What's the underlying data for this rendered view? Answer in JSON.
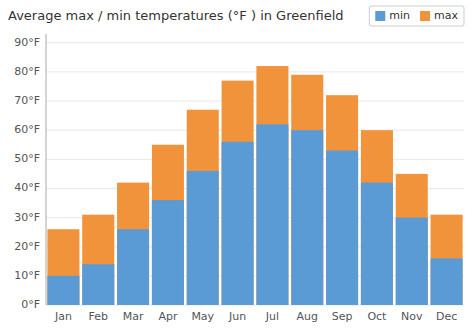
{
  "chart_data": {
    "type": "bar",
    "title": "Average max / min temperatures (°F ) in Greenfield",
    "categories": [
      "Jan",
      "Feb",
      "Mar",
      "Apr",
      "May",
      "Jun",
      "Jul",
      "Aug",
      "Sep",
      "Oct",
      "Nov",
      "Dec"
    ],
    "series": [
      {
        "name": "min",
        "color": "#5b9bd5",
        "values": [
          10,
          14,
          26,
          36,
          46,
          56,
          62,
          60,
          53,
          42,
          30,
          16
        ]
      },
      {
        "name": "max",
        "color": "#f0933a",
        "values": [
          26,
          31,
          42,
          55,
          67,
          77,
          82,
          79,
          72,
          60,
          45,
          31
        ]
      }
    ],
    "stacked": false,
    "ylim": [
      0,
      93
    ],
    "yticks": [
      {
        "value": 0,
        "label": "0°F"
      },
      {
        "value": 10,
        "label": "10°F"
      },
      {
        "value": 20,
        "label": "20°F"
      },
      {
        "value": 30,
        "label": "30°F"
      },
      {
        "value": 40,
        "label": "40°F"
      },
      {
        "value": 50,
        "label": "50°F"
      },
      {
        "value": 60,
        "label": "60°F"
      },
      {
        "value": 70,
        "label": "70°F"
      },
      {
        "value": 80,
        "label": "80°F"
      },
      {
        "value": 90,
        "label": "90°F"
      }
    ],
    "grid": true,
    "legend": "upper right"
  }
}
